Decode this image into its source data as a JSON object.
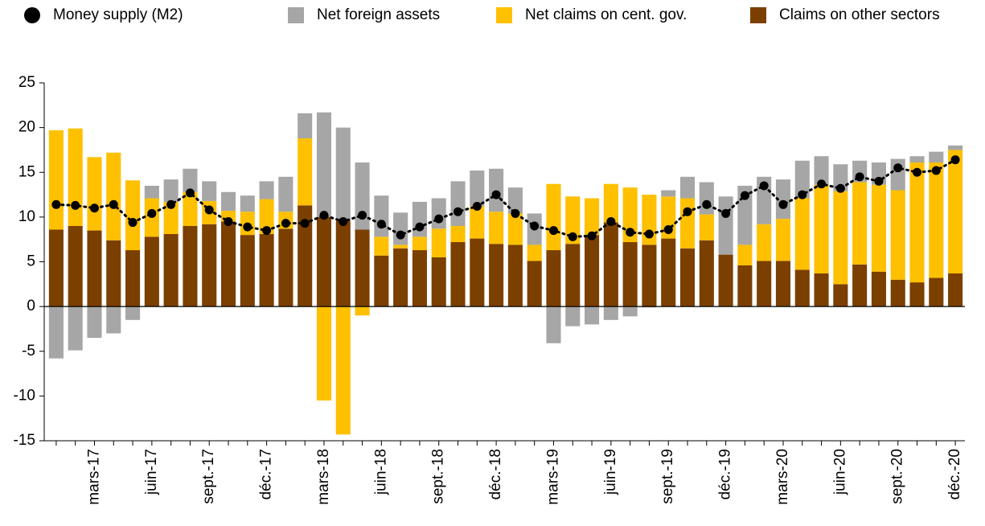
{
  "chart_data": {
    "type": "bar",
    "stacked": true,
    "categories": [
      null,
      null,
      "mars-17",
      null,
      null,
      "juin-17",
      null,
      null,
      "sept.-17",
      null,
      null,
      "déc.-17",
      null,
      null,
      "mars-18",
      null,
      null,
      "juin-18",
      null,
      null,
      "sept.-18",
      null,
      null,
      "déc.-18",
      null,
      null,
      "mars-19",
      null,
      null,
      "juin-19",
      null,
      null,
      "sept.-19",
      null,
      null,
      "déc.-19",
      null,
      null,
      "mars-20",
      null,
      null,
      "juin-20",
      null,
      null,
      "sept.-20",
      null,
      null,
      "déc.-20"
    ],
    "series": [
      {
        "name": "Claims on other sectors",
        "type": "bar",
        "color": "#7b3f00",
        "values": [
          8.6,
          9.0,
          8.5,
          7.4,
          6.3,
          7.8,
          8.1,
          9.0,
          9.2,
          9.5,
          8.0,
          8.1,
          8.7,
          11.3,
          10.0,
          9.6,
          8.6,
          5.7,
          6.5,
          6.3,
          5.5,
          7.2,
          7.6,
          7.0,
          6.9,
          5.1,
          6.3,
          7.0,
          8.0,
          9.4,
          7.2,
          6.9,
          7.6,
          6.5,
          7.4,
          5.8,
          4.6,
          5.1,
          5.1,
          4.1,
          3.7,
          2.5,
          4.7,
          3.9,
          3.0,
          2.7,
          3.2,
          3.7
        ]
      },
      {
        "name": "Net claims on cent. gov.",
        "type": "bar",
        "color": "#ffc000",
        "values": [
          11.1,
          10.9,
          8.2,
          9.8,
          7.8,
          4.3,
          3.6,
          3.8,
          2.6,
          1.2,
          2.6,
          3.9,
          1.9,
          7.5,
          -10.5,
          -14.3,
          -1.0,
          2.1,
          0.4,
          1.5,
          3.2,
          1.8,
          3.6,
          3.6,
          3.5,
          1.8,
          7.4,
          5.3,
          4.1,
          4.3,
          6.1,
          5.6,
          4.7,
          5.6,
          2.9,
          0,
          2.3,
          4.1,
          4.7,
          8.0,
          9.9,
          10.4,
          9.2,
          9.7,
          10.0,
          13.4,
          12.9,
          13.8
        ]
      },
      {
        "name": "Net foreign assets",
        "type": "bar",
        "color": "#a6a6a6",
        "values": [
          -5.8,
          -4.9,
          -3.5,
          -3.0,
          -1.5,
          1.4,
          2.5,
          2.6,
          2.2,
          2.1,
          1.8,
          2.0,
          3.9,
          2.8,
          11.7,
          10.4,
          7.5,
          4.6,
          3.6,
          3.9,
          3.4,
          5.0,
          4.0,
          4.8,
          2.9,
          3.5,
          -4.1,
          -2.2,
          -2.0,
          -1.5,
          -1.1,
          -0.1,
          0.7,
          2.4,
          3.6,
          6.5,
          6.6,
          5.3,
          4.4,
          4.2,
          3.2,
          3.0,
          2.4,
          2.5,
          3.5,
          0.7,
          1.2,
          0.5
        ]
      },
      {
        "name": "Money supply (M2)",
        "type": "line",
        "color": "#000000",
        "values": [
          11.4,
          11.3,
          11.0,
          11.4,
          9.4,
          10.4,
          11.4,
          12.7,
          10.8,
          9.5,
          8.9,
          8.5,
          9.3,
          9.3,
          10.2,
          9.5,
          10.2,
          9.2,
          8.0,
          8.9,
          9.8,
          10.6,
          11.2,
          12.5,
          10.4,
          9.0,
          8.5,
          7.8,
          7.9,
          9.5,
          8.3,
          8.1,
          8.6,
          10.6,
          11.4,
          10.4,
          12.4,
          13.5,
          11.4,
          12.5,
          13.7,
          13.2,
          14.5,
          14.0,
          15.5,
          15.0,
          15.2,
          16.4
        ]
      }
    ],
    "legend_order": [
      "Money supply (M2)",
      "Net foreign assets",
      "Net claims on cent. gov.",
      "Claims on other sectors"
    ],
    "ylim": [
      -15,
      25
    ],
    "yticks": [
      -15,
      -10,
      -5,
      0,
      5,
      10,
      15,
      20,
      25
    ],
    "grid": false
  }
}
